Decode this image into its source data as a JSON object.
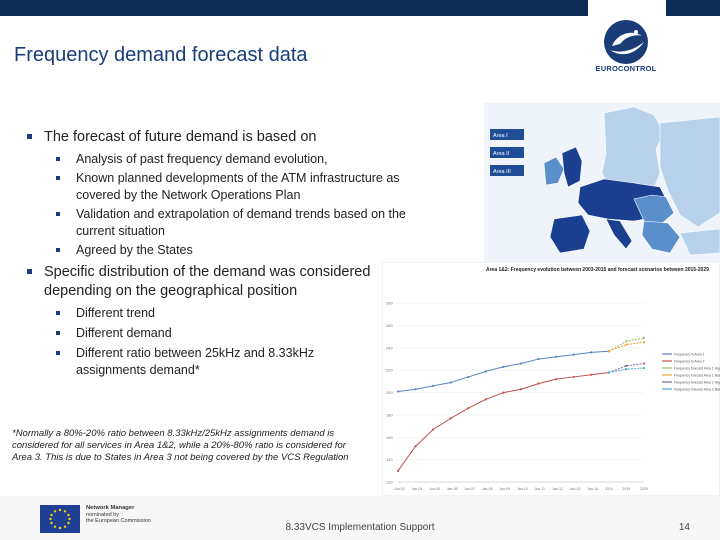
{
  "slide": {
    "title": "Frequency demand forecast data",
    "logo_text": "EUROCONTROL",
    "bullets": [
      {
        "text": "The forecast of future demand is based on",
        "sub": [
          "Analysis of past frequency demand evolution,",
          "Known planned developments of the ATM infrastructure as covered by the Network Operations Plan",
          "Validation and extrapolation of demand trends based on the current situation",
          "Agreed by the States"
        ]
      },
      {
        "text": "Specific distribution of the demand was considered depending on the geographical position",
        "sub": [
          "Different trend",
          "Different demand",
          "Different ratio between 25kHz and 8.33kHz  assignments demand*"
        ]
      }
    ],
    "footnote": "*Normally a 80%-20% ratio between 8.33kHz/25kHz assignments demand is considered for all services in Area 1&2, while a 20%-80% ratio is considered for Area 3. This is due to States in Area 3 not being covered by the VCS Regulation"
  },
  "map": {
    "legend": [
      "Area I",
      "Area II",
      "Area III"
    ],
    "colors": {
      "area1": "#1b3f8f",
      "area2": "#5a8fcc",
      "area3": "#b8d2ec",
      "sea": "#eef4fa",
      "legend_bg": "#1f4e96"
    }
  },
  "chart_data": {
    "type": "line",
    "title": "Area 1&2: Frequency evolution between 2003-2015 and forecast scenarios between 2015-2029",
    "ylim": [
      120,
      290
    ],
    "y_ticks": [
      "280",
      "260",
      "240",
      "220",
      "200",
      "180",
      "160",
      "140",
      "120"
    ],
    "x_ticks": [
      "Jun-03",
      "Jan-04",
      "Jun-05",
      "Jan-06",
      "Jun-07",
      "Jan-08",
      "Jun-09",
      "Jan-10",
      "Jun-11",
      "Jan-12",
      "Jun-13",
      "Jan-14",
      "2015",
      "2019",
      "2029"
    ],
    "series": [
      {
        "name": "Frequency in Area 1",
        "color": "#5b82c4",
        "values": [
          201,
          203,
          206,
          209,
          214,
          219,
          223,
          226,
          230,
          232,
          234,
          236,
          237
        ]
      },
      {
        "name": "Frequency in Area 2",
        "color": "#c0504d",
        "values": [
          130,
          152,
          167,
          177,
          186,
          194,
          200,
          203,
          208,
          212,
          214,
          216,
          218
        ]
      },
      {
        "name": "Frequency forecast Area 1 High",
        "color": "#9bbb59",
        "x_start": 12,
        "values": [
          237,
          246,
          249
        ]
      },
      {
        "name": "Frequency forecast Area 1 Base",
        "color": "#f0a030",
        "x_start": 12,
        "values": [
          237,
          243,
          245
        ]
      },
      {
        "name": "Frequency forecast Area 2 High",
        "color": "#8064a2",
        "x_start": 12,
        "values": [
          218,
          224,
          226
        ]
      },
      {
        "name": "Frequency forecast Area 2 Base",
        "color": "#4bacc6",
        "x_start": 12,
        "values": [
          218,
          221,
          222
        ]
      }
    ]
  },
  "footer": {
    "nm_line1": "Network Manager",
    "nm_line2": "nominated by",
    "nm_line3": "the European Commission",
    "center": "8.33VCS Implementation Support",
    "page": "14"
  }
}
